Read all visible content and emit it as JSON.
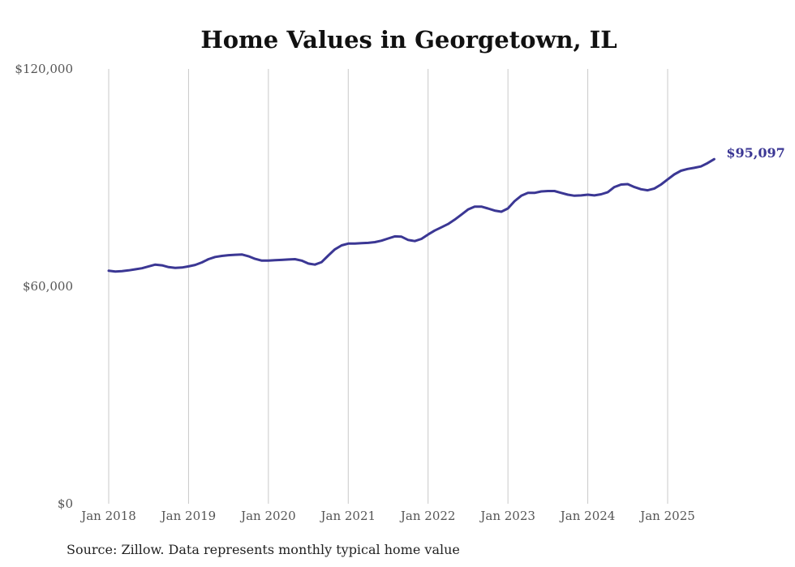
{
  "colors": {
    "line": "#3b3794",
    "grid": "#c9c9c9",
    "text": "#555555"
  },
  "chart_data": {
    "type": "line",
    "title": "Home Values in Georgetown, IL",
    "source": "Source: Zillow. Data represents monthly typical home value",
    "ylim": [
      0,
      120000
    ],
    "y_ticks": [
      {
        "value": 0,
        "label": "$0"
      },
      {
        "value": 60000,
        "label": "$60,000"
      },
      {
        "value": 120000,
        "label": "$120,000"
      }
    ],
    "x_ticks": [
      {
        "value": 2018.0,
        "label": "Jan 2018"
      },
      {
        "value": 2019.0,
        "label": "Jan 2019"
      },
      {
        "value": 2020.0,
        "label": "Jan 2020"
      },
      {
        "value": 2021.0,
        "label": "Jan 2021"
      },
      {
        "value": 2022.0,
        "label": "Jan 2022"
      },
      {
        "value": 2023.0,
        "label": "Jan 2023"
      },
      {
        "value": 2024.0,
        "label": "Jan 2024"
      },
      {
        "value": 2025.0,
        "label": "Jan 2025"
      }
    ],
    "grid": true,
    "end_label": "$95,097",
    "series": [
      {
        "points": [
          [
            2018.0,
            64300
          ],
          [
            2018.083,
            64100
          ],
          [
            2018.167,
            64200
          ],
          [
            2018.25,
            64400
          ],
          [
            2018.333,
            64700
          ],
          [
            2018.417,
            65000
          ],
          [
            2018.5,
            65500
          ],
          [
            2018.583,
            66000
          ],
          [
            2018.667,
            65800
          ],
          [
            2018.75,
            65300
          ],
          [
            2018.833,
            65100
          ],
          [
            2018.917,
            65200
          ],
          [
            2019.0,
            65500
          ],
          [
            2019.083,
            65900
          ],
          [
            2019.167,
            66600
          ],
          [
            2019.25,
            67500
          ],
          [
            2019.333,
            68100
          ],
          [
            2019.417,
            68400
          ],
          [
            2019.5,
            68600
          ],
          [
            2019.583,
            68700
          ],
          [
            2019.667,
            68800
          ],
          [
            2019.75,
            68300
          ],
          [
            2019.833,
            67600
          ],
          [
            2019.917,
            67100
          ],
          [
            2020.0,
            67100
          ],
          [
            2020.083,
            67200
          ],
          [
            2020.167,
            67300
          ],
          [
            2020.25,
            67400
          ],
          [
            2020.333,
            67500
          ],
          [
            2020.417,
            67100
          ],
          [
            2020.5,
            66300
          ],
          [
            2020.583,
            66000
          ],
          [
            2020.667,
            66700
          ],
          [
            2020.75,
            68500
          ],
          [
            2020.833,
            70200
          ],
          [
            2020.917,
            71300
          ],
          [
            2021.0,
            71800
          ],
          [
            2021.083,
            71800
          ],
          [
            2021.167,
            71900
          ],
          [
            2021.25,
            72000
          ],
          [
            2021.333,
            72200
          ],
          [
            2021.417,
            72600
          ],
          [
            2021.5,
            73200
          ],
          [
            2021.583,
            73800
          ],
          [
            2021.667,
            73700
          ],
          [
            2021.75,
            72800
          ],
          [
            2021.833,
            72500
          ],
          [
            2021.917,
            73100
          ],
          [
            2022.0,
            74300
          ],
          [
            2022.083,
            75400
          ],
          [
            2022.167,
            76300
          ],
          [
            2022.25,
            77200
          ],
          [
            2022.333,
            78400
          ],
          [
            2022.417,
            79800
          ],
          [
            2022.5,
            81200
          ],
          [
            2022.583,
            82000
          ],
          [
            2022.667,
            82000
          ],
          [
            2022.75,
            81500
          ],
          [
            2022.833,
            80900
          ],
          [
            2022.917,
            80600
          ],
          [
            2023.0,
            81500
          ],
          [
            2023.083,
            83500
          ],
          [
            2023.167,
            85000
          ],
          [
            2023.25,
            85800
          ],
          [
            2023.333,
            85800
          ],
          [
            2023.417,
            86200
          ],
          [
            2023.5,
            86300
          ],
          [
            2023.583,
            86300
          ],
          [
            2023.667,
            85800
          ],
          [
            2023.75,
            85300
          ],
          [
            2023.833,
            85000
          ],
          [
            2023.917,
            85100
          ],
          [
            2024.0,
            85300
          ],
          [
            2024.083,
            85100
          ],
          [
            2024.167,
            85400
          ],
          [
            2024.25,
            86000
          ],
          [
            2024.333,
            87400
          ],
          [
            2024.417,
            88100
          ],
          [
            2024.5,
            88200
          ],
          [
            2024.583,
            87400
          ],
          [
            2024.667,
            86800
          ],
          [
            2024.75,
            86500
          ],
          [
            2024.833,
            87000
          ],
          [
            2024.917,
            88100
          ],
          [
            2025.0,
            89500
          ],
          [
            2025.083,
            90900
          ],
          [
            2025.167,
            91900
          ],
          [
            2025.25,
            92400
          ],
          [
            2025.333,
            92700
          ],
          [
            2025.417,
            93100
          ],
          [
            2025.5,
            94000
          ],
          [
            2025.583,
            95097
          ]
        ]
      }
    ]
  }
}
